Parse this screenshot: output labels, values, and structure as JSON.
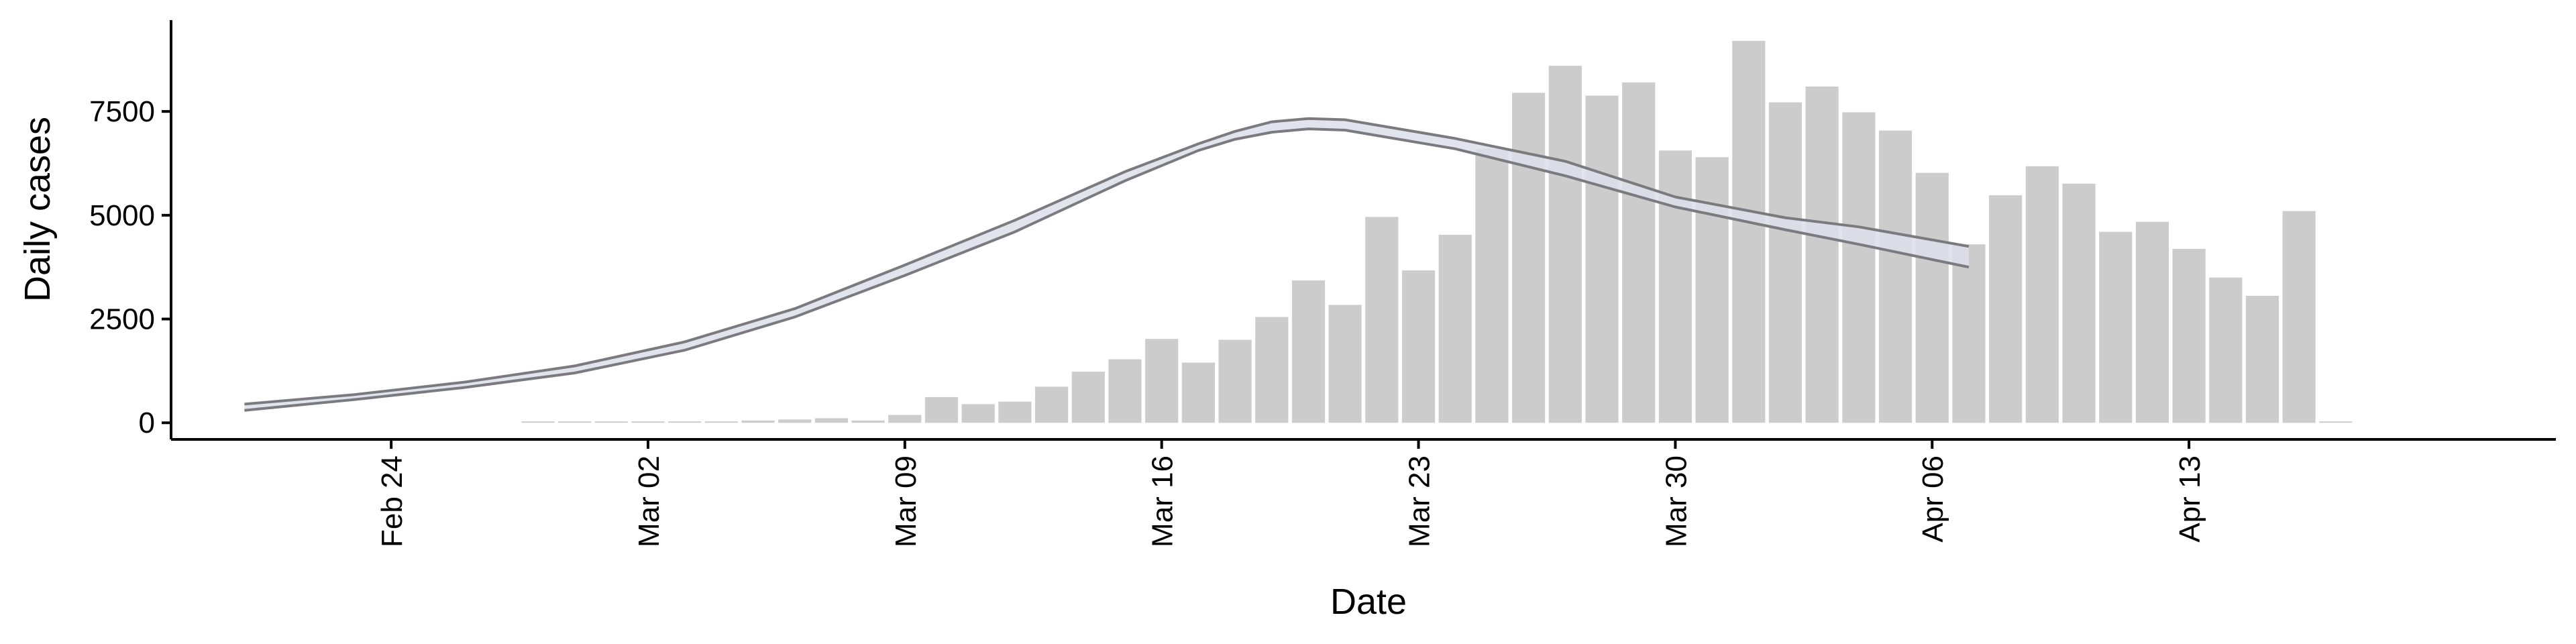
{
  "chart_data": {
    "type": "bar",
    "xlabel": "Date",
    "ylabel": "Daily cases",
    "ylim": [
      -400,
      9700
    ],
    "y_ticks": [
      0,
      2500,
      5000,
      7500
    ],
    "y_tick_labels": [
      "0",
      "2500",
      "5000",
      "7500"
    ],
    "x_ticks": [
      "2020-02-24",
      "2020-03-02",
      "2020-03-09",
      "2020-03-16",
      "2020-03-23",
      "2020-03-30",
      "2020-04-06",
      "2020-04-13"
    ],
    "x_tick_labels": [
      "Feb 24",
      "Mar 02",
      "Mar 09",
      "Mar 16",
      "Mar 23",
      "Mar 30",
      "Apr 06",
      "Apr 13"
    ],
    "xlim": [
      "2020-02-18",
      "2020-04-23"
    ],
    "grid": false,
    "legend": "none",
    "colors": {
      "bars": "#cccccc",
      "band_fill": "#dcdfea",
      "band_edge": "#7a7a7f",
      "axis": "#000000"
    },
    "bars": {
      "name": "",
      "dates": [
        "2020-02-28",
        "2020-02-29",
        "2020-03-01",
        "2020-03-02",
        "2020-03-03",
        "2020-03-04",
        "2020-03-05",
        "2020-03-06",
        "2020-03-07",
        "2020-03-08",
        "2020-03-09",
        "2020-03-10",
        "2020-03-11",
        "2020-03-12",
        "2020-03-13",
        "2020-03-14",
        "2020-03-15",
        "2020-03-16",
        "2020-03-17",
        "2020-03-18",
        "2020-03-19",
        "2020-03-20",
        "2020-03-21",
        "2020-03-22",
        "2020-03-23",
        "2020-03-24",
        "2020-03-25",
        "2020-03-26",
        "2020-03-27",
        "2020-03-28",
        "2020-03-29",
        "2020-03-30",
        "2020-03-31",
        "2020-04-01",
        "2020-04-02",
        "2020-04-03",
        "2020-04-04",
        "2020-04-05",
        "2020-04-06",
        "2020-04-07",
        "2020-04-08",
        "2020-04-09",
        "2020-04-10",
        "2020-04-11",
        "2020-04-12",
        "2020-04-13",
        "2020-04-14",
        "2020-04-15",
        "2020-04-16",
        "2020-04-17"
      ],
      "values": [
        10,
        0,
        25,
        20,
        30,
        30,
        55,
        80,
        110,
        55,
        190,
        620,
        450,
        510,
        870,
        1230,
        1530,
        2020,
        1450,
        2000,
        2550,
        3430,
        2840,
        4960,
        3670,
        4530,
        6600,
        7950,
        8600,
        7880,
        8200,
        6560,
        6400,
        9200,
        7720,
        8100,
        7480,
        7040,
        6020,
        4300,
        5480,
        6180,
        5760,
        4600,
        4840,
        4190,
        3500,
        3060,
        5100,
        0
      ]
    },
    "band": {
      "name": "",
      "dates": [
        "2020-02-20",
        "2020-02-23",
        "2020-02-26",
        "2020-02-29",
        "2020-03-03",
        "2020-03-06",
        "2020-03-09",
        "2020-03-12",
        "2020-03-15",
        "2020-03-17",
        "2020-03-18",
        "2020-03-19",
        "2020-03-20",
        "2020-03-21",
        "2020-03-24",
        "2020-03-27",
        "2020-03-30",
        "2020-04-02",
        "2020-04-04",
        "2020-04-07"
      ],
      "lower": [
        300,
        560,
        850,
        1200,
        1750,
        2550,
        3550,
        4600,
        5830,
        6560,
        6830,
        7000,
        7080,
        7050,
        6600,
        5950,
        5200,
        4650,
        4300,
        3750
      ],
      "upper": [
        450,
        680,
        980,
        1370,
        1950,
        2750,
        3800,
        4880,
        6050,
        6720,
        7020,
        7250,
        7330,
        7300,
        6850,
        6300,
        5440,
        4940,
        4720,
        4250
      ]
    }
  }
}
